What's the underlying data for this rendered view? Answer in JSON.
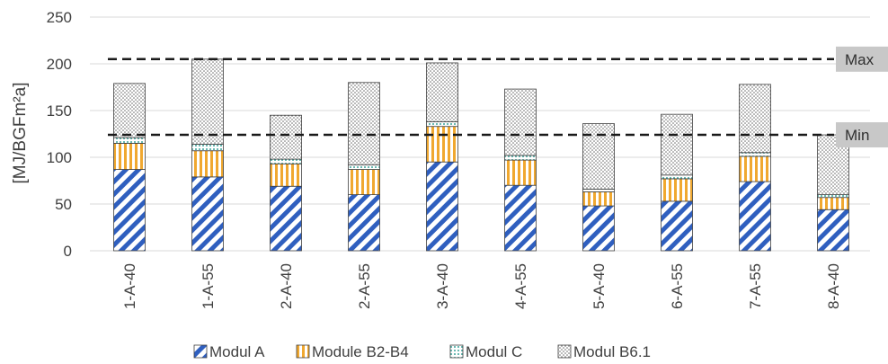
{
  "chart_data": {
    "type": "bar",
    "stacked": true,
    "ylabel": "[MJ/BGFm²a]",
    "ylim": [
      0,
      250
    ],
    "yticks": [
      0,
      50,
      100,
      150,
      200,
      250
    ],
    "grid": true,
    "legend_position": "bottom",
    "categories": [
      "1-A-40",
      "1-A-55",
      "2-A-40",
      "2-A-55",
      "3-A-40",
      "4-A-55",
      "5-A-40",
      "6-A-55",
      "7-A-55",
      "8-A-40"
    ],
    "series": [
      {
        "name": "Modul A",
        "color": "#2f5fbf",
        "pattern": "diagonal-stripes",
        "values": [
          87,
          79,
          69,
          60,
          95,
          70,
          48,
          53,
          74,
          44
        ]
      },
      {
        "name": "Module B2-B4",
        "color": "#f0a830",
        "pattern": "vertical-stripes",
        "values": [
          28,
          28,
          24,
          27,
          38,
          27,
          15,
          24,
          27,
          13
        ]
      },
      {
        "name": "Modul C",
        "color": "#5fb8b0",
        "pattern": "dotted",
        "values": [
          6,
          7,
          5,
          5,
          5,
          5,
          3,
          4,
          4,
          3
        ]
      },
      {
        "name": "Modul B6.1",
        "color": "#909090",
        "pattern": "crosshatch",
        "values": [
          58,
          91,
          47,
          88,
          63,
          71,
          70,
          65,
          73,
          64
        ]
      }
    ],
    "reference_lines": [
      {
        "label": "Max",
        "value": 205
      },
      {
        "label": "Min",
        "value": 124
      }
    ]
  }
}
